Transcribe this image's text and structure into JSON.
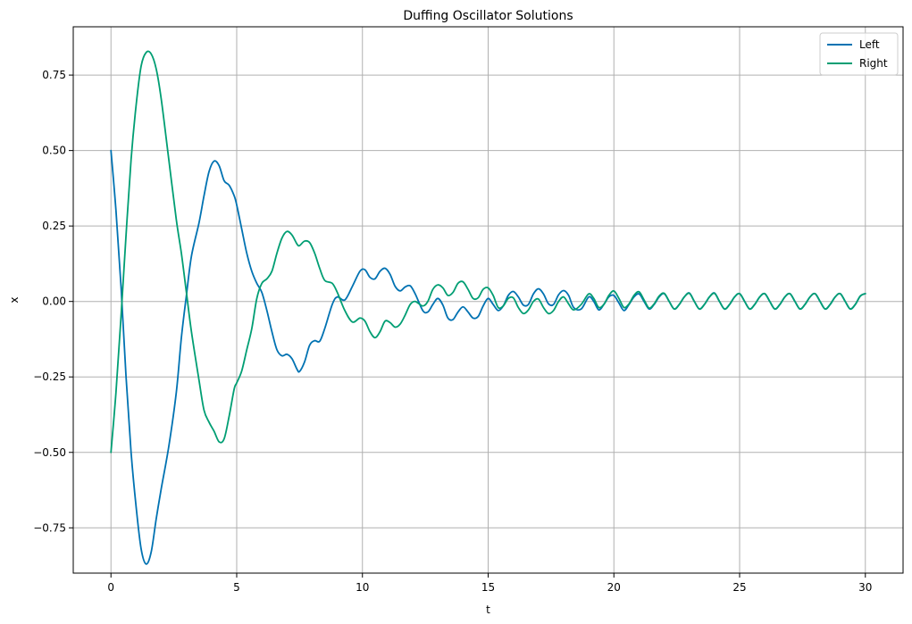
{
  "chart_data": {
    "type": "line",
    "title": "Duffing Oscillator Solutions",
    "xlabel": "t",
    "ylabel": "x",
    "xlim": [
      -1.5,
      31.5
    ],
    "ylim": [
      -0.9,
      0.91
    ],
    "xticks": [
      0,
      5,
      10,
      15,
      20,
      25,
      30
    ],
    "xtick_labels": [
      "0",
      "5",
      "10",
      "15",
      "20",
      "25",
      "30"
    ],
    "yticks": [
      -0.75,
      -0.5,
      -0.25,
      0.0,
      0.25,
      0.5,
      0.75
    ],
    "ytick_labels": [
      "−0.75",
      "−0.50",
      "−0.25",
      "0.00",
      "0.25",
      "0.50",
      "0.75"
    ],
    "grid": true,
    "legend_position": "top-right",
    "series": [
      {
        "name": "Left",
        "color": "#0072b2",
        "points": [
          [
            0,
            0.5
          ],
          [
            0.2,
            0.3
          ],
          [
            0.4,
            0.05
          ],
          [
            0.6,
            -0.25
          ],
          [
            0.8,
            -0.5
          ],
          [
            1.0,
            -0.68
          ],
          [
            1.2,
            -0.82
          ],
          [
            1.4,
            -0.87
          ],
          [
            1.6,
            -0.83
          ],
          [
            1.8,
            -0.72
          ],
          [
            2.0,
            -0.62
          ],
          [
            2.3,
            -0.48
          ],
          [
            2.6,
            -0.3
          ],
          [
            2.8,
            -0.12
          ],
          [
            3.0,
            0.02
          ],
          [
            3.2,
            0.15
          ],
          [
            3.5,
            0.26
          ],
          [
            3.7,
            0.35
          ],
          [
            3.9,
            0.43
          ],
          [
            4.1,
            0.465
          ],
          [
            4.3,
            0.45
          ],
          [
            4.5,
            0.4
          ],
          [
            4.7,
            0.385
          ],
          [
            4.9,
            0.35
          ],
          [
            5.0,
            0.32
          ],
          [
            5.2,
            0.24
          ],
          [
            5.4,
            0.16
          ],
          [
            5.6,
            0.1
          ],
          [
            5.8,
            0.06
          ],
          [
            6.0,
            0.03
          ],
          [
            6.2,
            -0.03
          ],
          [
            6.4,
            -0.1
          ],
          [
            6.6,
            -0.16
          ],
          [
            6.8,
            -0.18
          ],
          [
            7.0,
            -0.175
          ],
          [
            7.2,
            -0.19
          ],
          [
            7.4,
            -0.225
          ],
          [
            7.5,
            -0.232
          ],
          [
            7.7,
            -0.2
          ],
          [
            7.9,
            -0.145
          ],
          [
            8.1,
            -0.13
          ],
          [
            8.3,
            -0.132
          ],
          [
            8.5,
            -0.09
          ],
          [
            8.8,
            -0.01
          ],
          [
            9.0,
            0.015
          ],
          [
            9.3,
            0.005
          ],
          [
            9.6,
            0.05
          ],
          [
            9.9,
            0.1
          ],
          [
            10.1,
            0.105
          ],
          [
            10.3,
            0.08
          ],
          [
            10.5,
            0.075
          ],
          [
            10.7,
            0.1
          ],
          [
            10.9,
            0.11
          ],
          [
            11.1,
            0.09
          ],
          [
            11.3,
            0.05
          ],
          [
            11.5,
            0.035
          ],
          [
            11.7,
            0.048
          ],
          [
            11.9,
            0.052
          ],
          [
            12.1,
            0.025
          ],
          [
            12.4,
            -0.03
          ],
          [
            12.6,
            -0.035
          ],
          [
            12.8,
            -0.01
          ],
          [
            13.0,
            0.01
          ],
          [
            13.2,
            -0.012
          ],
          [
            13.4,
            -0.055
          ],
          [
            13.6,
            -0.06
          ],
          [
            13.8,
            -0.035
          ],
          [
            14.0,
            -0.018
          ],
          [
            14.2,
            -0.035
          ],
          [
            14.4,
            -0.055
          ],
          [
            14.6,
            -0.05
          ],
          [
            14.8,
            -0.015
          ],
          [
            15.0,
            0.01
          ],
          [
            15.2,
            -0.01
          ],
          [
            15.4,
            -0.03
          ],
          [
            15.6,
            -0.015
          ],
          [
            15.8,
            0.02
          ],
          [
            16.0,
            0.033
          ],
          [
            16.2,
            0.015
          ],
          [
            16.4,
            -0.012
          ],
          [
            16.6,
            -0.01
          ],
          [
            16.8,
            0.025
          ],
          [
            17.0,
            0.042
          ],
          [
            17.2,
            0.025
          ],
          [
            17.4,
            -0.008
          ],
          [
            17.6,
            -0.01
          ],
          [
            17.8,
            0.022
          ],
          [
            18.0,
            0.036
          ],
          [
            18.2,
            0.02
          ],
          [
            18.4,
            -0.02
          ],
          [
            18.7,
            -0.025
          ],
          [
            19.0,
            0.015
          ],
          [
            19.2,
            0.0
          ],
          [
            19.4,
            -0.028
          ],
          [
            19.6,
            -0.01
          ],
          [
            19.8,
            0.015
          ],
          [
            20.0,
            0.02
          ],
          [
            20.2,
            -0.005
          ],
          [
            20.4,
            -0.03
          ],
          [
            20.6,
            -0.01
          ],
          [
            20.8,
            0.015
          ],
          [
            21.0,
            0.025
          ],
          [
            21.2,
            0.0
          ],
          [
            21.4,
            -0.025
          ],
          [
            21.6,
            -0.01
          ],
          [
            21.8,
            0.015
          ],
          [
            22.0,
            0.026
          ],
          [
            22.2,
            0.0
          ],
          [
            22.4,
            -0.025
          ],
          [
            22.6,
            -0.01
          ],
          [
            22.8,
            0.015
          ],
          [
            23.0,
            0.028
          ],
          [
            23.2,
            0.0
          ],
          [
            23.4,
            -0.025
          ],
          [
            23.6,
            -0.01
          ],
          [
            23.8,
            0.015
          ],
          [
            24.0,
            0.028
          ],
          [
            24.2,
            0.0
          ],
          [
            24.4,
            -0.025
          ],
          [
            24.6,
            -0.01
          ],
          [
            24.8,
            0.015
          ],
          [
            25.0,
            0.026
          ],
          [
            25.2,
            0.0
          ],
          [
            25.4,
            -0.025
          ],
          [
            25.6,
            -0.01
          ],
          [
            25.8,
            0.015
          ],
          [
            26.0,
            0.026
          ],
          [
            26.2,
            0.0
          ],
          [
            26.4,
            -0.025
          ],
          [
            26.6,
            -0.01
          ],
          [
            26.8,
            0.015
          ],
          [
            27.0,
            0.026
          ],
          [
            27.2,
            0.0
          ],
          [
            27.4,
            -0.025
          ],
          [
            27.6,
            -0.01
          ],
          [
            27.8,
            0.015
          ],
          [
            28.0,
            0.026
          ],
          [
            28.2,
            0.0
          ],
          [
            28.4,
            -0.025
          ],
          [
            28.6,
            -0.01
          ],
          [
            28.8,
            0.015
          ],
          [
            29.0,
            0.026
          ],
          [
            29.2,
            0.0
          ],
          [
            29.4,
            -0.025
          ],
          [
            29.6,
            -0.01
          ],
          [
            29.8,
            0.018
          ],
          [
            30.0,
            0.026
          ]
        ]
      },
      {
        "name": "Right",
        "color": "#009e73",
        "points": [
          [
            0,
            -0.5
          ],
          [
            0.2,
            -0.3
          ],
          [
            0.4,
            -0.05
          ],
          [
            0.6,
            0.22
          ],
          [
            0.8,
            0.47
          ],
          [
            1.0,
            0.65
          ],
          [
            1.2,
            0.78
          ],
          [
            1.4,
            0.825
          ],
          [
            1.6,
            0.82
          ],
          [
            1.8,
            0.77
          ],
          [
            2.0,
            0.67
          ],
          [
            2.3,
            0.47
          ],
          [
            2.6,
            0.27
          ],
          [
            2.8,
            0.16
          ],
          [
            3.0,
            0.03
          ],
          [
            3.2,
            -0.1
          ],
          [
            3.5,
            -0.26
          ],
          [
            3.7,
            -0.36
          ],
          [
            3.9,
            -0.4
          ],
          [
            4.1,
            -0.43
          ],
          [
            4.3,
            -0.465
          ],
          [
            4.5,
            -0.455
          ],
          [
            4.7,
            -0.38
          ],
          [
            4.9,
            -0.29
          ],
          [
            5.0,
            -0.27
          ],
          [
            5.2,
            -0.23
          ],
          [
            5.4,
            -0.16
          ],
          [
            5.6,
            -0.09
          ],
          [
            5.8,
            0.01
          ],
          [
            6.0,
            0.06
          ],
          [
            6.2,
            0.075
          ],
          [
            6.4,
            0.1
          ],
          [
            6.6,
            0.16
          ],
          [
            6.8,
            0.21
          ],
          [
            7.0,
            0.232
          ],
          [
            7.2,
            0.22
          ],
          [
            7.4,
            0.19
          ],
          [
            7.5,
            0.185
          ],
          [
            7.7,
            0.2
          ],
          [
            7.9,
            0.195
          ],
          [
            8.1,
            0.16
          ],
          [
            8.3,
            0.11
          ],
          [
            8.5,
            0.07
          ],
          [
            8.8,
            0.06
          ],
          [
            9.0,
            0.03
          ],
          [
            9.3,
            -0.03
          ],
          [
            9.6,
            -0.068
          ],
          [
            9.9,
            -0.055
          ],
          [
            10.1,
            -0.065
          ],
          [
            10.3,
            -0.1
          ],
          [
            10.5,
            -0.12
          ],
          [
            10.7,
            -0.1
          ],
          [
            10.9,
            -0.065
          ],
          [
            11.1,
            -0.07
          ],
          [
            11.3,
            -0.085
          ],
          [
            11.5,
            -0.075
          ],
          [
            11.7,
            -0.045
          ],
          [
            11.9,
            -0.01
          ],
          [
            12.1,
            0.0
          ],
          [
            12.4,
            -0.015
          ],
          [
            12.6,
            0.0
          ],
          [
            12.8,
            0.04
          ],
          [
            13.0,
            0.055
          ],
          [
            13.2,
            0.045
          ],
          [
            13.4,
            0.02
          ],
          [
            13.6,
            0.03
          ],
          [
            13.8,
            0.06
          ],
          [
            14.0,
            0.065
          ],
          [
            14.2,
            0.04
          ],
          [
            14.4,
            0.01
          ],
          [
            14.6,
            0.012
          ],
          [
            14.8,
            0.04
          ],
          [
            15.0,
            0.045
          ],
          [
            15.2,
            0.02
          ],
          [
            15.4,
            -0.02
          ],
          [
            15.6,
            -0.015
          ],
          [
            15.8,
            0.01
          ],
          [
            16.0,
            0.012
          ],
          [
            16.2,
            -0.02
          ],
          [
            16.4,
            -0.04
          ],
          [
            16.6,
            -0.028
          ],
          [
            16.8,
            0.0
          ],
          [
            17.0,
            0.008
          ],
          [
            17.2,
            -0.02
          ],
          [
            17.4,
            -0.04
          ],
          [
            17.6,
            -0.03
          ],
          [
            17.8,
            0.0
          ],
          [
            18.0,
            0.015
          ],
          [
            18.2,
            -0.008
          ],
          [
            18.4,
            -0.028
          ],
          [
            18.7,
            -0.01
          ],
          [
            19.0,
            0.025
          ],
          [
            19.2,
            0.01
          ],
          [
            19.4,
            -0.02
          ],
          [
            19.6,
            -0.01
          ],
          [
            19.8,
            0.02
          ],
          [
            20.0,
            0.035
          ],
          [
            20.2,
            0.01
          ],
          [
            20.4,
            -0.02
          ],
          [
            20.6,
            -0.008
          ],
          [
            20.8,
            0.02
          ],
          [
            21.0,
            0.032
          ],
          [
            21.2,
            0.005
          ],
          [
            21.4,
            -0.022
          ],
          [
            21.6,
            -0.008
          ],
          [
            21.8,
            0.018
          ],
          [
            22.0,
            0.027
          ],
          [
            22.2,
            0.0
          ],
          [
            22.4,
            -0.025
          ],
          [
            22.6,
            -0.01
          ],
          [
            22.8,
            0.015
          ],
          [
            23.0,
            0.027
          ],
          [
            23.2,
            0.0
          ],
          [
            23.4,
            -0.025
          ],
          [
            23.6,
            -0.01
          ],
          [
            23.8,
            0.015
          ],
          [
            24.0,
            0.027
          ],
          [
            24.2,
            0.0
          ],
          [
            24.4,
            -0.025
          ],
          [
            24.6,
            -0.01
          ],
          [
            24.8,
            0.015
          ],
          [
            25.0,
            0.026
          ],
          [
            25.2,
            0.0
          ],
          [
            25.4,
            -0.025
          ],
          [
            25.6,
            -0.01
          ],
          [
            25.8,
            0.015
          ],
          [
            26.0,
            0.026
          ],
          [
            26.2,
            0.0
          ],
          [
            26.4,
            -0.025
          ],
          [
            26.6,
            -0.01
          ],
          [
            26.8,
            0.015
          ],
          [
            27.0,
            0.026
          ],
          [
            27.2,
            0.0
          ],
          [
            27.4,
            -0.025
          ],
          [
            27.6,
            -0.01
          ],
          [
            27.8,
            0.015
          ],
          [
            28.0,
            0.026
          ],
          [
            28.2,
            0.0
          ],
          [
            28.4,
            -0.025
          ],
          [
            28.6,
            -0.01
          ],
          [
            28.8,
            0.015
          ],
          [
            29.0,
            0.026
          ],
          [
            29.2,
            0.0
          ],
          [
            29.4,
            -0.025
          ],
          [
            29.6,
            -0.01
          ],
          [
            29.8,
            0.018
          ],
          [
            30.0,
            0.026
          ]
        ]
      }
    ]
  }
}
